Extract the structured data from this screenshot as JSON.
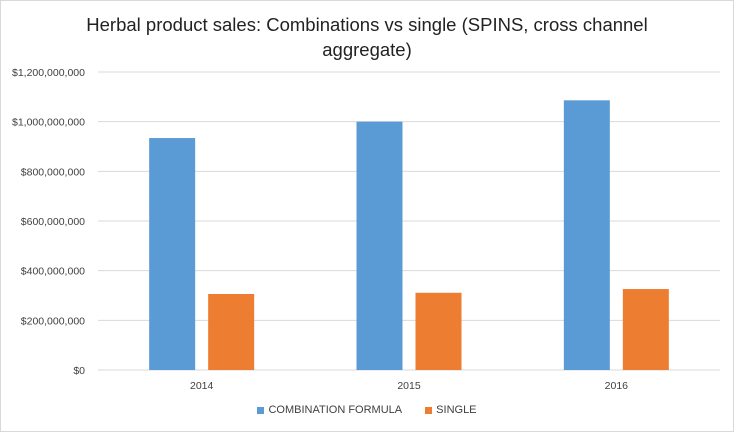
{
  "chart_data": {
    "type": "bar",
    "title_lines": [
      "Herbal product sales: Combinations vs single (SPINS, cross channel",
      "aggregate)"
    ],
    "title": "Herbal product sales: Combinations vs single (SPINS, cross channel aggregate)",
    "categories": [
      "2014",
      "2015",
      "2016"
    ],
    "series": [
      {
        "name": "COMBINATION FORMULA",
        "color": "#5b9bd5",
        "values": [
          934000000,
          1000000000,
          1086000000
        ]
      },
      {
        "name": "SINGLE",
        "color": "#ed7d31",
        "values": [
          306000000,
          311000000,
          326000000
        ]
      }
    ],
    "xlabel": "",
    "ylabel": "",
    "ylim": [
      0,
      1200000000
    ],
    "yticks": [
      0,
      200000000,
      400000000,
      600000000,
      800000000,
      1000000000,
      1200000000
    ],
    "ytick_labels": [
      "$0",
      "$200,000,000",
      "$400,000,000",
      "$600,000,000",
      "$800,000,000",
      "$1,000,000,000",
      "$1,200,000,000"
    ],
    "grid": true,
    "legend_position": "bottom"
  }
}
